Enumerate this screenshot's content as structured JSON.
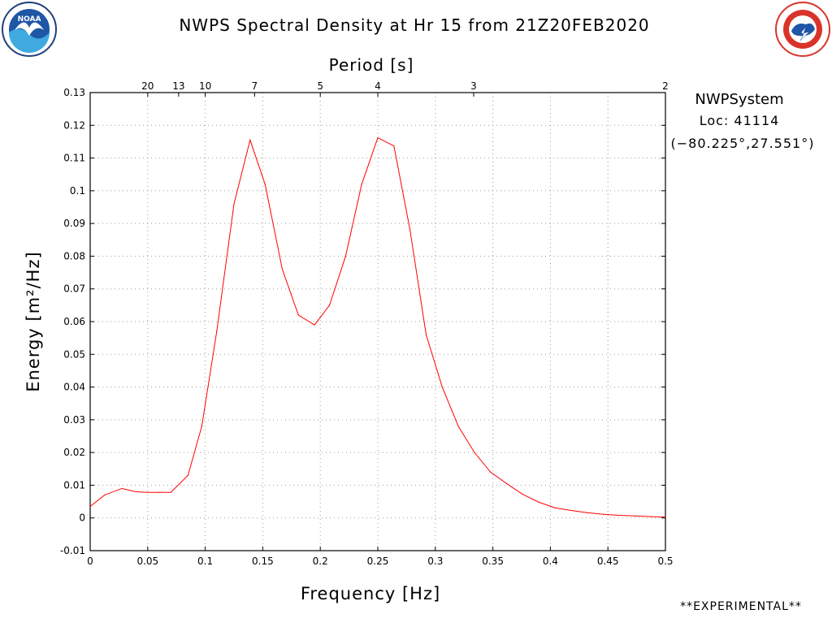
{
  "chart_data": {
    "type": "line",
    "title": "NWPS Spectral Density at Hr 15 from 21Z20FEB2020",
    "xlabel": "Frequency [Hz]",
    "ylabel": "Energy [m²/Hz]",
    "top_axis_label": "Period [s]",
    "xlim": [
      0,
      0.5
    ],
    "ylim": [
      -0.01,
      0.13
    ],
    "x_ticks": [
      0,
      0.05,
      0.1,
      0.15,
      0.2,
      0.25,
      0.3,
      0.35,
      0.4,
      0.45,
      0.5
    ],
    "x_tick_labels": [
      "0",
      "0.05",
      "0.1",
      "0.15",
      "0.2",
      "0.25",
      "0.3",
      "0.35",
      "0.4",
      "0.45",
      "0.5"
    ],
    "y_ticks": [
      -0.01,
      0,
      0.01,
      0.02,
      0.03,
      0.04,
      0.05,
      0.06,
      0.07,
      0.08,
      0.09,
      0.1,
      0.11,
      0.12,
      0.13
    ],
    "y_tick_labels": [
      "-0.01",
      "0",
      "0.01",
      "0.02",
      "0.03",
      "0.04",
      "0.05",
      "0.06",
      "0.07",
      "0.08",
      "0.09",
      "0.1",
      "0.11",
      "0.12",
      "0.13"
    ],
    "period_ticks": [
      {
        "label": "20",
        "freq": 0.05
      },
      {
        "label": "13",
        "freq": 0.0769
      },
      {
        "label": "10",
        "freq": 0.1
      },
      {
        "label": "7",
        "freq": 0.1429
      },
      {
        "label": "5",
        "freq": 0.2
      },
      {
        "label": "4",
        "freq": 0.25
      },
      {
        "label": "3",
        "freq": 0.3333
      },
      {
        "label": "2",
        "freq": 0.5
      }
    ],
    "grid": true,
    "series": [
      {
        "color": "#ff0000",
        "x": [
          0,
          0.0125,
          0.0275,
          0.04,
          0.05,
          0.06,
          0.07,
          0.085,
          0.097,
          0.11,
          0.125,
          0.139,
          0.152,
          0.167,
          0.181,
          0.195,
          0.208,
          0.222,
          0.236,
          0.25,
          0.264,
          0.278,
          0.292,
          0.306,
          0.32,
          0.334,
          0.348,
          0.362,
          0.376,
          0.39,
          0.404,
          0.418,
          0.432,
          0.446,
          0.46,
          0.474,
          0.488,
          0.5
        ],
        "y": [
          0.0035,
          0.007,
          0.009,
          0.008,
          0.0078,
          0.0078,
          0.0078,
          0.013,
          0.028,
          0.057,
          0.096,
          0.1155,
          0.102,
          0.076,
          0.062,
          0.059,
          0.065,
          0.08,
          0.102,
          0.1162,
          0.1137,
          0.088,
          0.056,
          0.04,
          0.028,
          0.02,
          0.014,
          0.0105,
          0.0072,
          0.0048,
          0.0031,
          0.0023,
          0.0016,
          0.0011,
          0.0008,
          0.0006,
          0.0004,
          0.0003
        ]
      }
    ]
  },
  "info": {
    "system": "NWPSystem",
    "location": "Loc: 41114",
    "coords": "(−80.225°,27.551°)",
    "experimental": "**EXPERIMENTAL**"
  },
  "logos": {
    "noaa": "NOAA",
    "nws": "NATIONAL WEATHER SERVICE"
  },
  "colors": {
    "line": "#ff0000",
    "noaa_blue": "#1f56a5",
    "nws_red": "#d9342b"
  }
}
